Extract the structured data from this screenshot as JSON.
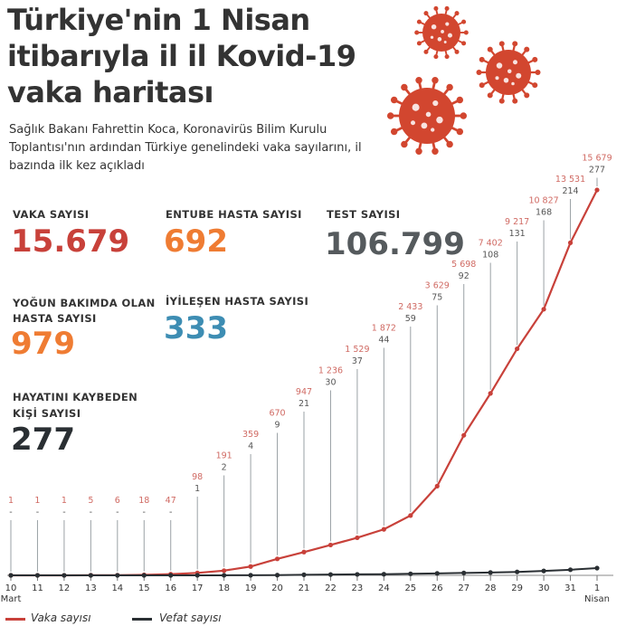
{
  "title": "Türkiye'nin 1 Nisan itibarıyla il il Kovid-19 vaka haritası",
  "subtitle": "Sağlık Bakanı Fahrettin Koca, Koronavirüs Bilim Kurulu Toplantısı'nın ardından Türkiye genelindeki vaka sayılarını, il bazında ilk kez açıkladı",
  "stats": {
    "cases_label": "VAKA SAYISI",
    "cases_value": "15.679",
    "intubated_label": "ENTUBE HASTA SAYISI",
    "intubated_value": "692",
    "tests_label": "TEST SAYISI",
    "tests_value": "106.799",
    "icu_label_1": "YOĞUN BAKIMDA OLAN",
    "icu_label_2": "HASTA SAYISI",
    "icu_value": "979",
    "recovered_label": "İYİLEŞEN HASTA SAYISI",
    "recovered_value": "333",
    "deaths_label_1": "HAYATINI KAYBEDEN",
    "deaths_label_2": "KİŞİ SAYISI",
    "deaths_value": "277"
  },
  "colors": {
    "red": "#c8413a",
    "orange": "#ef7c33",
    "gray": "#555a5d",
    "blue": "#3d8db3",
    "dark": "#2a2f33",
    "virus": "#d2462f",
    "grid": "#9aa1a5",
    "case_label": "#d06a63",
    "death_label": "#555"
  },
  "legend": {
    "cases": "Vaka sayısı",
    "deaths": "Vefat sayısı"
  },
  "decorations": {
    "virus_icons": [
      "virus-icon",
      "virus-icon",
      "virus-icon"
    ]
  },
  "chart_data": {
    "type": "line",
    "title": "",
    "xlabel": "",
    "ylabel": "",
    "categories": [
      "10",
      "11",
      "12",
      "13",
      "14",
      "15",
      "16",
      "17",
      "18",
      "19",
      "20",
      "21",
      "22",
      "23",
      "24",
      "25",
      "26",
      "27",
      "28",
      "29",
      "30",
      "31",
      "1"
    ],
    "month_labels": [
      "Mart",
      "Nisan"
    ],
    "series": [
      {
        "name": "Vaka sayısı",
        "values": [
          1,
          1,
          1,
          5,
          6,
          18,
          47,
          98,
          191,
          359,
          670,
          947,
          1236,
          1529,
          1872,
          2433,
          3629,
          5698,
          7402,
          9217,
          10827,
          13531,
          15679
        ],
        "labels": [
          "1",
          "1",
          "1",
          "5",
          "6",
          "18",
          "47",
          "98",
          "191",
          "359",
          "670",
          "947",
          "1 236",
          "1 529",
          "1 872",
          "2 433",
          "3 629",
          "5 698",
          "7 402",
          "9 217",
          "10 827",
          "13 531",
          "15 679"
        ]
      },
      {
        "name": "Vefat sayısı",
        "values": [
          0,
          0,
          0,
          0,
          0,
          0,
          0,
          1,
          2,
          4,
          9,
          21,
          30,
          37,
          44,
          59,
          75,
          92,
          108,
          131,
          168,
          214,
          277
        ],
        "labels": [
          "-",
          "-",
          "-",
          "-",
          "-",
          "-",
          "-",
          "1",
          "2",
          "4",
          "9",
          "21",
          "30",
          "37",
          "44",
          "59",
          "75",
          "92",
          "108",
          "131",
          "168",
          "214",
          "277"
        ]
      }
    ],
    "ylim": [
      0,
      16000
    ],
    "grid": false,
    "legend_position": "bottom-left"
  }
}
